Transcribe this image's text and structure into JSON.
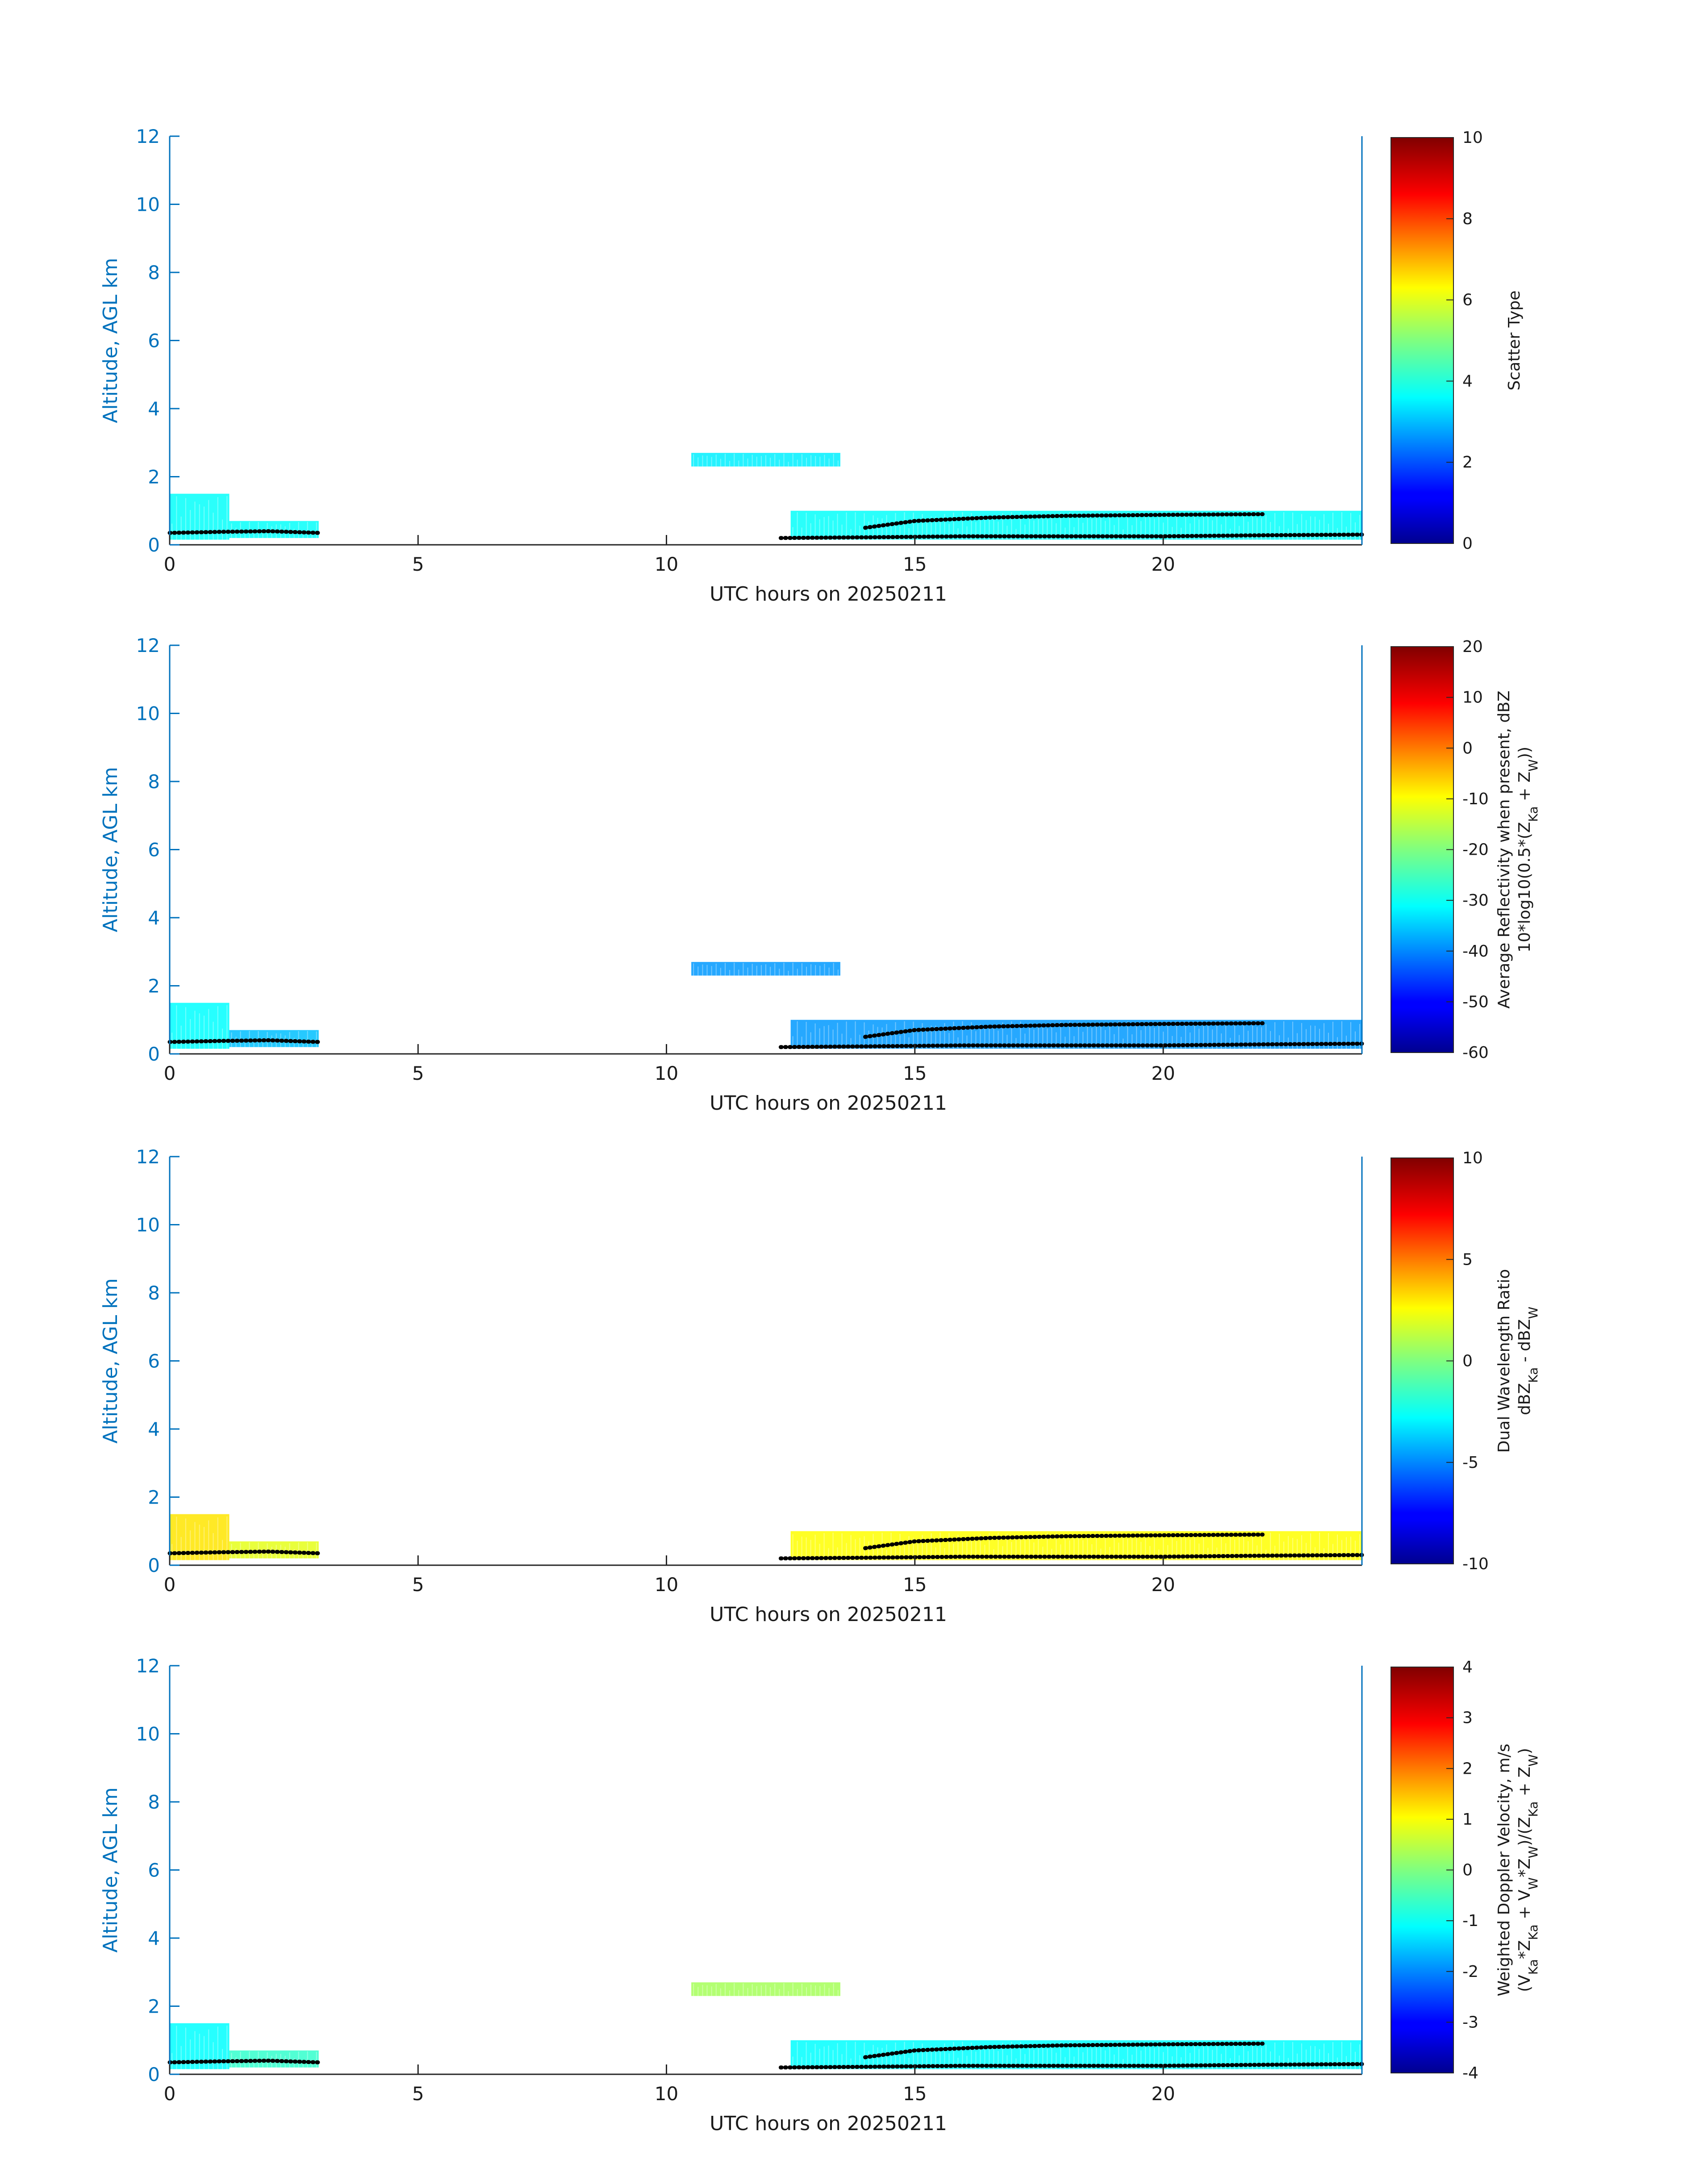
{
  "colors": {
    "axis": "#0072bd",
    "tick": "#262626",
    "retrieval_marker": "#000000",
    "colormap": "jet"
  },
  "chart_data": [
    {
      "type": "heatmap",
      "xlabel": "UTC hours on 20250211",
      "ylabel": "Altitude, AGL km",
      "xlim": [
        0,
        24
      ],
      "ylim": [
        0,
        12
      ],
      "xticks": [
        "0",
        "5",
        "10",
        "15",
        "20"
      ],
      "yticks": [
        "0",
        "2",
        "4",
        "6",
        "8",
        "10",
        "12"
      ],
      "colorbar": {
        "label_lines": [
          "Scatter Type"
        ],
        "range": [
          0,
          10
        ],
        "ticks": [
          "0",
          "2",
          "4",
          "6",
          "8",
          "10"
        ]
      },
      "echo_regions": [
        {
          "t0": 0.0,
          "t1": 1.2,
          "z0": 0.15,
          "z1": 1.5,
          "value": 3.8
        },
        {
          "t0": 1.2,
          "t1": 3.0,
          "z0": 0.2,
          "z1": 0.7,
          "value": 3.8
        },
        {
          "t0": 10.5,
          "t1": 13.5,
          "z0": 2.3,
          "z1": 2.7,
          "value": 3.6
        },
        {
          "t0": 12.5,
          "t1": 24.0,
          "z0": 0.15,
          "z1": 1.0,
          "value": 3.8
        }
      ],
      "retrieval_lines": [
        {
          "t": [
            0.0,
            1.0,
            2.0,
            3.0
          ],
          "z": [
            0.35,
            0.38,
            0.4,
            0.35
          ]
        },
        {
          "t": [
            12.3,
            14.0,
            16.0,
            18.0,
            20.0,
            22.0,
            24.0
          ],
          "z": [
            0.2,
            0.22,
            0.25,
            0.25,
            0.25,
            0.28,
            0.3
          ]
        },
        {
          "t": [
            14.0,
            15.0,
            16.5,
            18.0,
            20.0,
            22.0
          ],
          "z": [
            0.5,
            0.7,
            0.8,
            0.85,
            0.88,
            0.9
          ]
        }
      ]
    },
    {
      "type": "heatmap",
      "xlabel": "UTC hours on 20250211",
      "ylabel": "Altitude, AGL km",
      "xlim": [
        0,
        24
      ],
      "ylim": [
        0,
        12
      ],
      "xticks": [
        "0",
        "5",
        "10",
        "15",
        "20"
      ],
      "yticks": [
        "0",
        "2",
        "4",
        "6",
        "8",
        "10",
        "12"
      ],
      "colorbar": {
        "label_lines": [
          "Average Reflectivity when present, dBZ",
          "10*log10(0.5*(Z_Ka + Z_W))"
        ],
        "range": [
          -60,
          20
        ],
        "ticks": [
          "-60",
          "-50",
          "-40",
          "-30",
          "-20",
          "-10",
          "0",
          "10",
          "20"
        ]
      },
      "echo_regions": [
        {
          "t0": 0.0,
          "t1": 1.2,
          "z0": 0.15,
          "z1": 1.5,
          "value": -30
        },
        {
          "t0": 1.2,
          "t1": 3.0,
          "z0": 0.2,
          "z1": 0.7,
          "value": -35
        },
        {
          "t0": 10.5,
          "t1": 13.5,
          "z0": 2.3,
          "z1": 2.7,
          "value": -38
        },
        {
          "t0": 12.5,
          "t1": 24.0,
          "z0": 0.15,
          "z1": 1.0,
          "value": -38
        }
      ],
      "retrieval_lines": [
        {
          "t": [
            0.0,
            1.0,
            2.0,
            3.0
          ],
          "z": [
            0.35,
            0.38,
            0.4,
            0.35
          ]
        },
        {
          "t": [
            12.3,
            14.0,
            16.0,
            18.0,
            20.0,
            22.0,
            24.0
          ],
          "z": [
            0.2,
            0.22,
            0.25,
            0.25,
            0.25,
            0.28,
            0.3
          ]
        },
        {
          "t": [
            14.0,
            15.0,
            16.5,
            18.0,
            20.0,
            22.0
          ],
          "z": [
            0.5,
            0.7,
            0.8,
            0.85,
            0.88,
            0.9
          ]
        }
      ]
    },
    {
      "type": "heatmap",
      "xlabel": "UTC hours on 20250211",
      "ylabel": "Altitude, AGL km",
      "xlim": [
        0,
        24
      ],
      "ylim": [
        0,
        12
      ],
      "xticks": [
        "0",
        "5",
        "10",
        "15",
        "20"
      ],
      "yticks": [
        "0",
        "2",
        "4",
        "6",
        "8",
        "10",
        "12"
      ],
      "colorbar": {
        "label_lines": [
          "Dual Wavelength Ratio",
          "dBZ_Ka - dBZ_W"
        ],
        "range": [
          -10,
          10
        ],
        "ticks": [
          "-10",
          "-5",
          "0",
          "5",
          "10"
        ]
      },
      "echo_regions": [
        {
          "t0": 0.0,
          "t1": 1.2,
          "z0": 0.15,
          "z1": 1.5,
          "value": 3
        },
        {
          "t0": 1.2,
          "t1": 3.0,
          "z0": 0.2,
          "z1": 0.7,
          "value": 2
        },
        {
          "t0": 12.5,
          "t1": 24.0,
          "z0": 0.15,
          "z1": 1.0,
          "value": 2.5
        }
      ],
      "retrieval_lines": [
        {
          "t": [
            0.0,
            1.0,
            2.0,
            3.0
          ],
          "z": [
            0.35,
            0.38,
            0.4,
            0.35
          ]
        },
        {
          "t": [
            12.3,
            14.0,
            16.0,
            18.0,
            20.0,
            22.0,
            24.0
          ],
          "z": [
            0.2,
            0.22,
            0.25,
            0.25,
            0.25,
            0.28,
            0.3
          ]
        },
        {
          "t": [
            14.0,
            15.0,
            16.5,
            18.0,
            20.0,
            22.0
          ],
          "z": [
            0.5,
            0.7,
            0.8,
            0.85,
            0.88,
            0.9
          ]
        }
      ]
    },
    {
      "type": "heatmap",
      "xlabel": "UTC hours on 20250211",
      "ylabel": "Altitude, AGL km",
      "xlim": [
        0,
        24
      ],
      "ylim": [
        0,
        12
      ],
      "xticks": [
        "0",
        "5",
        "10",
        "15",
        "20"
      ],
      "yticks": [
        "0",
        "2",
        "4",
        "6",
        "8",
        "10",
        "12"
      ],
      "colorbar": {
        "label_lines": [
          "Weighted Doppler Velocity, m/s",
          "(V_Ka*Z_Ka + V_W*Z_W)/(Z_Ka + Z_W)"
        ],
        "range": [
          -4,
          4
        ],
        "ticks": [
          "-4",
          "-3",
          "-2",
          "-1",
          "0",
          "1",
          "2",
          "3",
          "4"
        ]
      },
      "echo_regions": [
        {
          "t0": 0.0,
          "t1": 1.2,
          "z0": 0.15,
          "z1": 1.5,
          "value": -1.0
        },
        {
          "t0": 1.2,
          "t1": 3.0,
          "z0": 0.2,
          "z1": 0.7,
          "value": -0.6
        },
        {
          "t0": 10.5,
          "t1": 13.5,
          "z0": 2.3,
          "z1": 2.7,
          "value": 0.3
        },
        {
          "t0": 12.5,
          "t1": 24.0,
          "z0": 0.15,
          "z1": 1.0,
          "value": -1.0
        }
      ],
      "retrieval_lines": [
        {
          "t": [
            0.0,
            1.0,
            2.0,
            3.0
          ],
          "z": [
            0.35,
            0.38,
            0.4,
            0.35
          ]
        },
        {
          "t": [
            12.3,
            14.0,
            16.0,
            18.0,
            20.0,
            22.0,
            24.0
          ],
          "z": [
            0.2,
            0.22,
            0.25,
            0.25,
            0.25,
            0.28,
            0.3
          ]
        },
        {
          "t": [
            14.0,
            15.0,
            16.5,
            18.0,
            20.0,
            22.0
          ],
          "z": [
            0.5,
            0.7,
            0.8,
            0.85,
            0.88,
            0.9
          ]
        }
      ]
    }
  ]
}
